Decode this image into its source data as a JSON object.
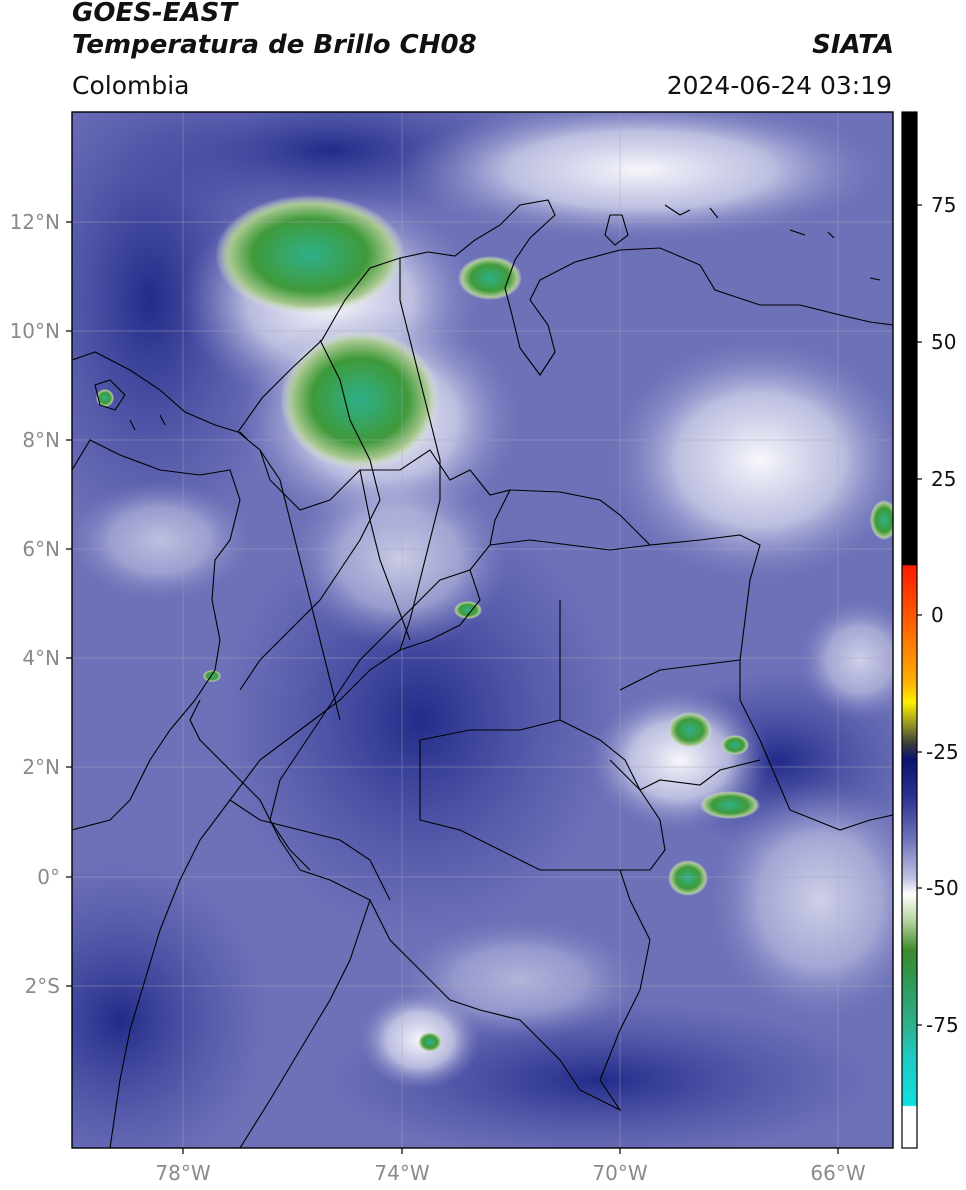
{
  "header": {
    "satellite": "GOES-EAST",
    "product": "Temperatura de Brillo CH08",
    "brand": "SIATA",
    "region": "Colombia",
    "datetime": "2024-06-24 03:19"
  },
  "map": {
    "lat_ticks": [
      "12°N",
      "10°N",
      "8°N",
      "6°N",
      "4°N",
      "2°N",
      "0°",
      "2°S"
    ],
    "lon_ticks": [
      "78°W",
      "74°W",
      "70°W",
      "66°W"
    ]
  },
  "colorbar": {
    "tick_labels": [
      "75",
      "50",
      "25",
      "0",
      "-25",
      "-50",
      "-75"
    ],
    "colors": {
      "black": "#000000",
      "red": "#ff1a00",
      "yellow": "#ffee00",
      "dark_blue": "#0b1370",
      "white": "#ffffff",
      "green": "#2f8a2a",
      "cyan": "#10e0e0"
    }
  }
}
